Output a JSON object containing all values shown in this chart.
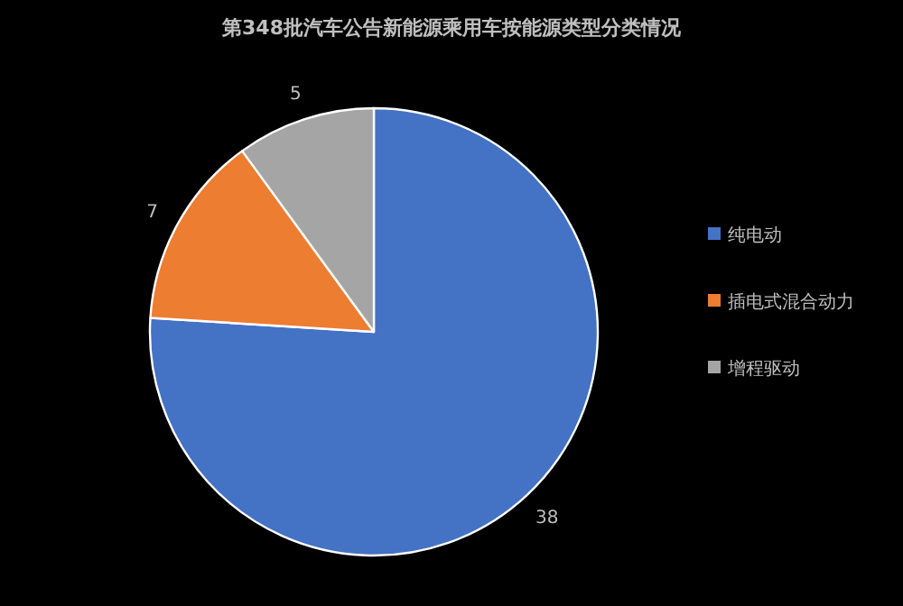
{
  "chart_data": {
    "type": "pie",
    "title": "第348批汽车公告新能源乘用车按能源类型分类情况",
    "categories": [
      "纯电动",
      "插电式混合动力",
      "增程驱动"
    ],
    "values": [
      38,
      7,
      5
    ],
    "colors": [
      "#4472c4",
      "#ed7d31",
      "#a5a5a5"
    ],
    "data_labels": true,
    "legend": "right"
  }
}
